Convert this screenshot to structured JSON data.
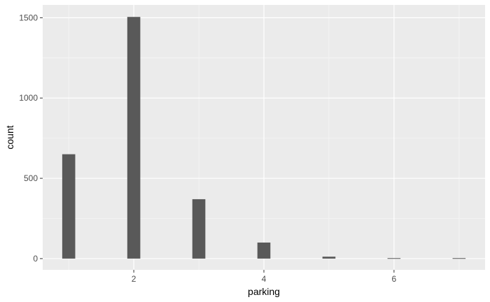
{
  "chart_data": {
    "type": "bar",
    "xlabel": "parking",
    "ylabel": "count",
    "x": [
      1,
      2,
      3,
      4,
      5,
      6,
      7
    ],
    "values": [
      650,
      1505,
      370,
      100,
      12,
      3,
      3
    ],
    "xlim": [
      0.6,
      7.4
    ],
    "ylim": [
      -70,
      1580
    ],
    "x_ticks": [
      2,
      4,
      6
    ],
    "y_ticks": [
      0,
      500,
      1000,
      1500
    ],
    "x_tick_labels": [
      "2",
      "4",
      "6"
    ],
    "y_tick_labels": [
      "0",
      "500",
      "1000",
      "1500"
    ],
    "grid": true,
    "legend": "none",
    "colors": {
      "panel_background": "#ebebeb",
      "grid_major": "#ffffff",
      "grid_minor": "#f5f5f5",
      "bar_fill": "#595959",
      "tick_text": "#4d4d4d",
      "tick_mark": "#333333"
    }
  }
}
